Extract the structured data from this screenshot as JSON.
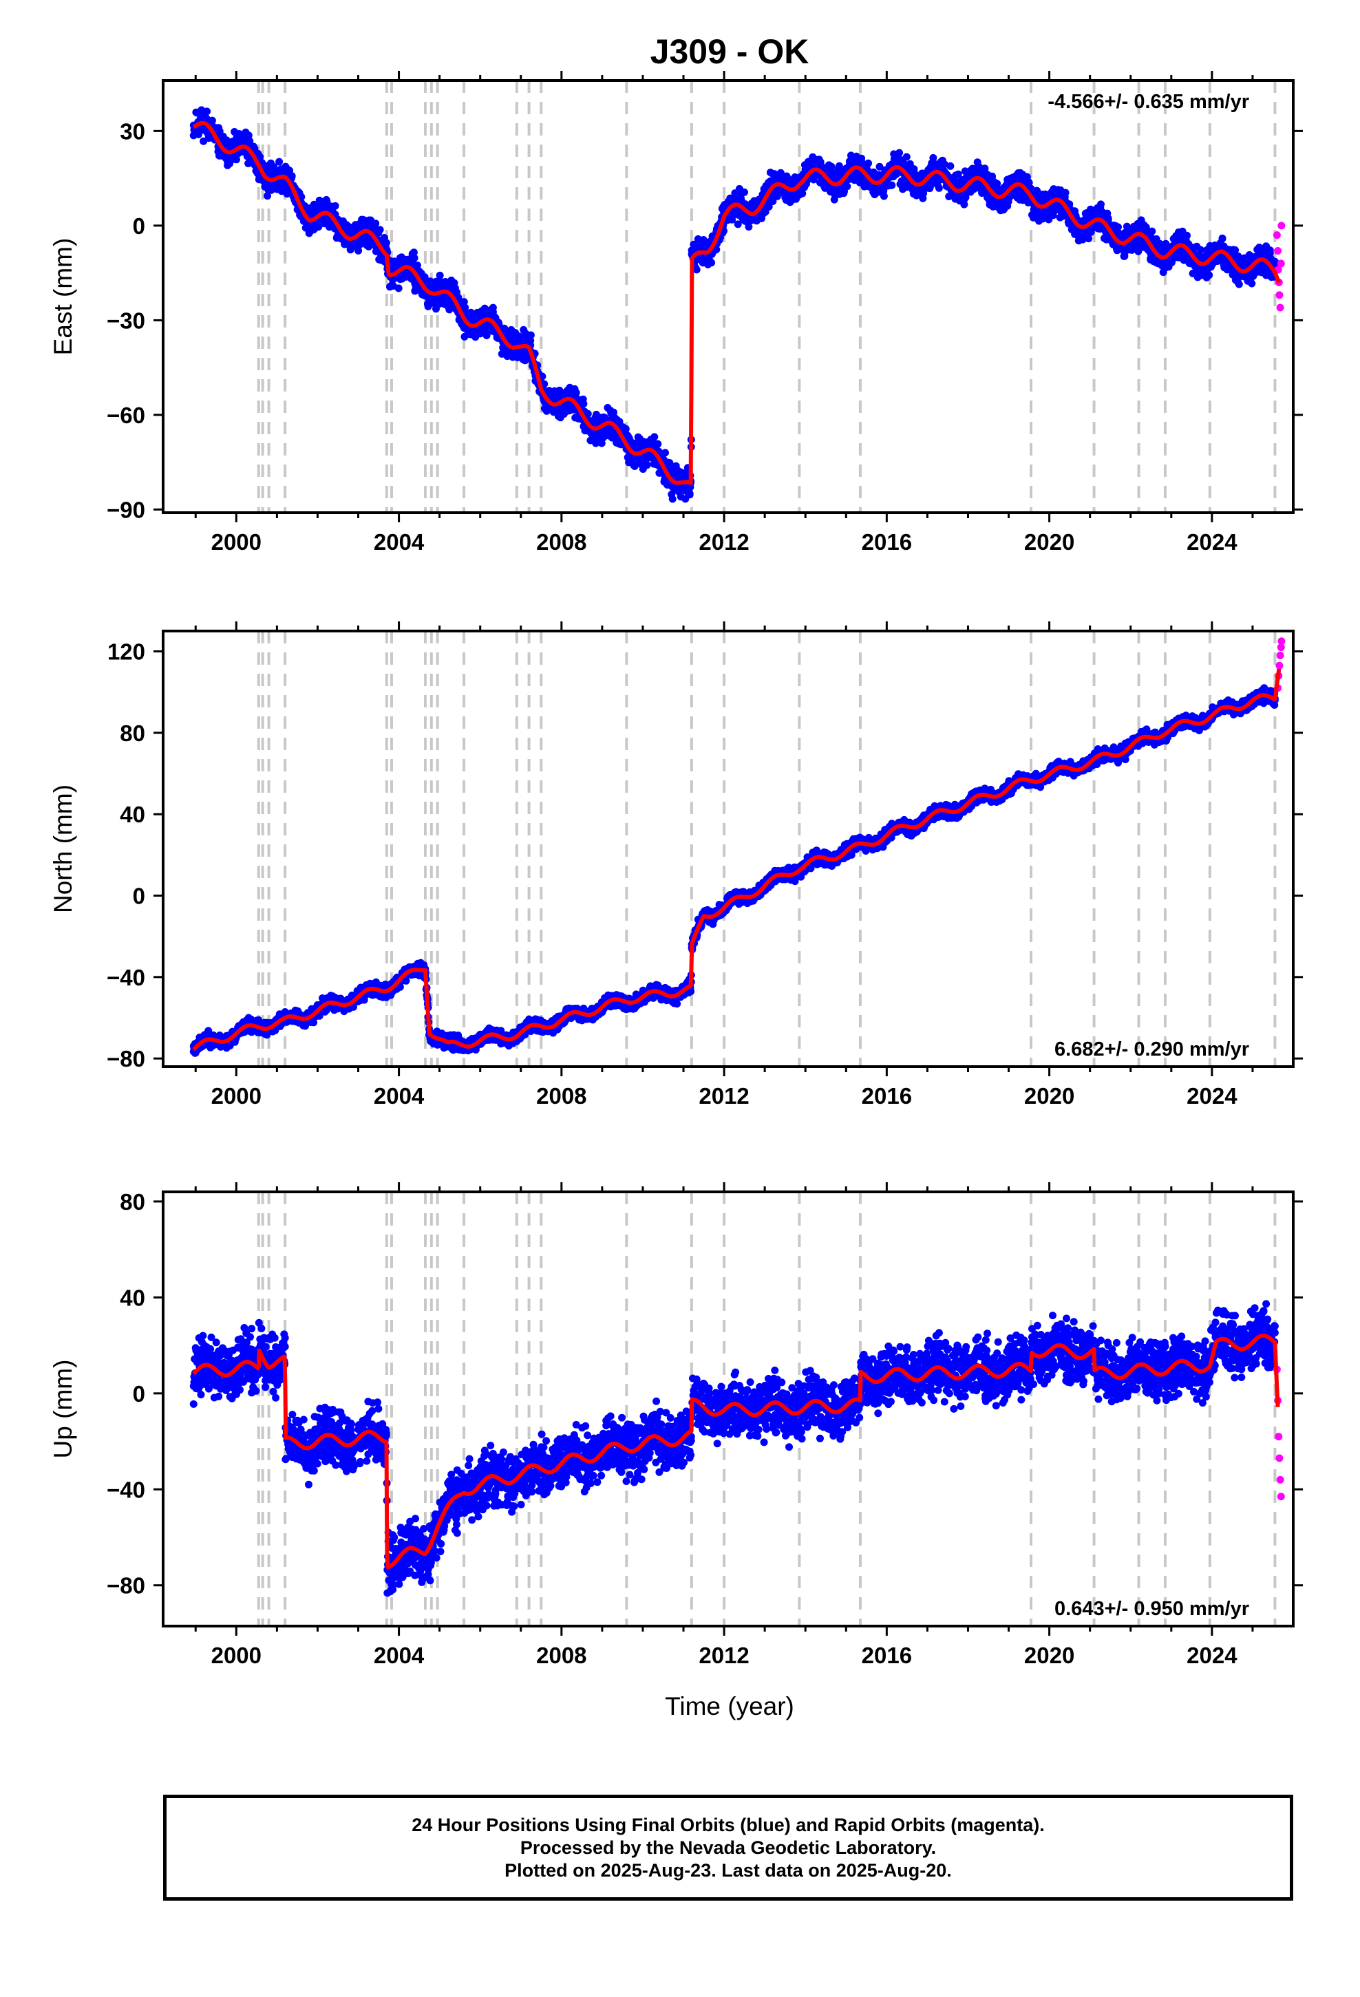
{
  "title": "J309 - OK",
  "x_label": "Time (year)",
  "colors": {
    "final": "#0000ff",
    "rapid": "#ff00ff",
    "model": "#ff0000",
    "event_lines": "#c8c8c8"
  },
  "footer": [
    "24 Hour Positions Using Final Orbits (blue) and Rapid Orbits (magenta).",
    "Processed by the Nevada Geodetic Laboratory.",
    "Plotted on 2025-Aug-23. Last data on 2025-Aug-20."
  ],
  "chart_data": {
    "type": "scatter",
    "x_range": [
      1998.2,
      2026.0
    ],
    "x_ticks": [
      2000,
      2004,
      2008,
      2012,
      2016,
      2020,
      2024
    ],
    "event_lines": [
      2000.55,
      2000.65,
      2000.8,
      2001.2,
      2003.7,
      2003.82,
      2004.65,
      2004.8,
      2004.95,
      2005.6,
      2006.9,
      2007.2,
      2007.5,
      2009.6,
      2011.2,
      2012.0,
      2013.85,
      2015.35,
      2019.55,
      2021.1,
      2022.2,
      2022.85,
      2023.95,
      2025.55
    ],
    "panels": [
      {
        "ylabel": "East (mm)",
        "rate_text": "-4.566+/- 0.635 mm/yr",
        "rate_position": "top-right",
        "ylim": [
          -91,
          46
        ],
        "yticks": [
          30,
          0,
          -30,
          -60,
          -90
        ],
        "noise": 3.0,
        "seasonal": 2.5,
        "seed": 11,
        "model_path": [
          [
            1998.95,
            32
          ],
          [
            2000.55,
            20
          ],
          [
            2000.7,
            18
          ],
          [
            2001.2,
            13
          ],
          [
            2001.8,
            4
          ],
          [
            2003.7,
            -7
          ],
          [
            2003.75,
            -13
          ],
          [
            2004.65,
            -18
          ],
          [
            2004.8,
            -19
          ],
          [
            2005.6,
            -28
          ],
          [
            2006.9,
            -37
          ],
          [
            2007.2,
            -41
          ],
          [
            2007.5,
            -52
          ],
          [
            2009.6,
            -68
          ],
          [
            2010.9,
            -80
          ],
          [
            2011.19,
            -84
          ],
          [
            2011.2,
            -13
          ],
          [
            2011.6,
            -7
          ],
          [
            2012.0,
            3
          ],
          [
            2012.7,
            6
          ],
          [
            2013.85,
            15
          ],
          [
            2015.35,
            16
          ],
          [
            2016.5,
            16
          ],
          [
            2019.55,
            10
          ],
          [
            2021.1,
            0
          ],
          [
            2022.2,
            -5
          ],
          [
            2022.85,
            -8
          ],
          [
            2023.95,
            -10
          ],
          [
            2025.55,
            -14
          ],
          [
            2025.65,
            -16
          ]
        ],
        "rapid_points": [
          [
            2025.6,
            -3
          ],
          [
            2025.62,
            -8
          ],
          [
            2025.63,
            -14
          ],
          [
            2025.65,
            -18
          ],
          [
            2025.66,
            -22
          ],
          [
            2025.68,
            -26
          ],
          [
            2025.7,
            -12
          ],
          [
            2025.71,
            0
          ]
        ]
      },
      {
        "ylabel": "North (mm)",
        "rate_text": "6.682+/- 0.290 mm/yr",
        "rate_position": "bottom-right",
        "ylim": [
          -84,
          130
        ],
        "yticks": [
          120,
          80,
          40,
          0,
          -40,
          -80
        ],
        "noise": 2.2,
        "seasonal": 2.0,
        "seed": 23,
        "model_path": [
          [
            1998.95,
            -75
          ],
          [
            2000.55,
            -64
          ],
          [
            2001.2,
            -62
          ],
          [
            2003.7,
            -45
          ],
          [
            2004.65,
            -35
          ],
          [
            2004.75,
            -66
          ],
          [
            2005.2,
            -74
          ],
          [
            2006.9,
            -68
          ],
          [
            2009.6,
            -51
          ],
          [
            2011.19,
            -46
          ],
          [
            2011.2,
            -26
          ],
          [
            2011.5,
            -10
          ],
          [
            2012.0,
            -6
          ],
          [
            2013.85,
            14
          ],
          [
            2015.35,
            24
          ],
          [
            2016.5,
            34
          ],
          [
            2019.55,
            57
          ],
          [
            2021.1,
            66
          ],
          [
            2022.2,
            75
          ],
          [
            2022.85,
            81
          ],
          [
            2023.95,
            88
          ],
          [
            2025.0,
            96
          ],
          [
            2025.55,
            97
          ],
          [
            2025.65,
            113
          ]
        ],
        "rapid_points": [
          [
            2025.62,
            102
          ],
          [
            2025.64,
            108
          ],
          [
            2025.66,
            113
          ],
          [
            2025.68,
            118
          ],
          [
            2025.7,
            122
          ],
          [
            2025.71,
            125
          ]
        ]
      },
      {
        "ylabel": "Up (mm)",
        "rate_text": "0.643+/- 0.950 mm/yr",
        "rate_position": "bottom-right",
        "ylim": [
          -97,
          84
        ],
        "yticks": [
          80,
          40,
          0,
          -40,
          -80
        ],
        "noise": 8.0,
        "seasonal": 2.5,
        "seed": 37,
        "gaps": [
          [
            2002.9,
            2003.0
          ]
        ],
        "model_path": [
          [
            1998.95,
            9
          ],
          [
            2000.55,
            11
          ],
          [
            2000.56,
            19
          ],
          [
            2000.8,
            13
          ],
          [
            2001.2,
            13
          ],
          [
            2001.21,
            -21
          ],
          [
            2003.7,
            -18
          ],
          [
            2003.71,
            -70
          ],
          [
            2004.65,
            -65
          ],
          [
            2004.95,
            -55
          ],
          [
            2005.6,
            -40
          ],
          [
            2009.6,
            -22
          ],
          [
            2011.2,
            -18
          ],
          [
            2011.21,
            -5
          ],
          [
            2012.0,
            -7
          ],
          [
            2015.35,
            -5
          ],
          [
            2015.36,
            7
          ],
          [
            2019.55,
            10
          ],
          [
            2019.56,
            18
          ],
          [
            2021.1,
            17
          ],
          [
            2021.11,
            8
          ],
          [
            2023.95,
            12
          ],
          [
            2024.1,
            20
          ],
          [
            2025.55,
            22
          ],
          [
            2025.62,
            -4
          ]
        ],
        "rapid_points": [
          [
            2025.6,
            10
          ],
          [
            2025.62,
            -3
          ],
          [
            2025.64,
            -18
          ],
          [
            2025.66,
            -27
          ],
          [
            2025.68,
            -36
          ],
          [
            2025.7,
            -43
          ]
        ]
      }
    ]
  }
}
